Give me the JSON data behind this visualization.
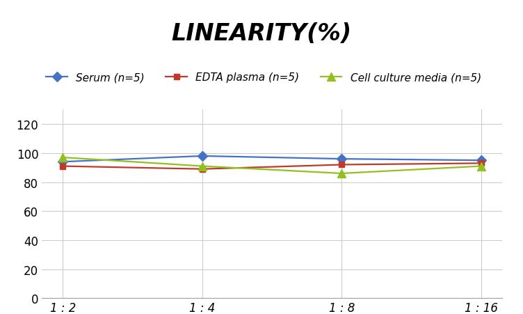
{
  "title": "LINEARITY(%)",
  "x_labels": [
    "1 : 2",
    "1 : 4",
    "1 : 8",
    "1 : 16"
  ],
  "x_positions": [
    0,
    1,
    2,
    3
  ],
  "series": [
    {
      "label": "Serum (n=5)",
      "values": [
        94,
        98,
        96,
        95
      ],
      "color": "#4472C4",
      "marker": "D",
      "marker_size": 7,
      "linewidth": 1.6
    },
    {
      "label": "EDTA plasma (n=5)",
      "values": [
        91,
        89,
        92,
        93
      ],
      "color": "#C0392B",
      "marker": "s",
      "marker_size": 6,
      "linewidth": 1.6
    },
    {
      "label": "Cell culture media (n=5)",
      "values": [
        97,
        91,
        86,
        91
      ],
      "color": "#92C01F",
      "marker": "^",
      "marker_size": 8,
      "linewidth": 1.6
    }
  ],
  "ylim": [
    0,
    130
  ],
  "yticks": [
    0,
    20,
    40,
    60,
    80,
    100,
    120
  ],
  "background_color": "#FFFFFF",
  "grid_color": "#CCCCCC",
  "title_fontsize": 24,
  "legend_fontsize": 11,
  "tick_fontsize": 12
}
